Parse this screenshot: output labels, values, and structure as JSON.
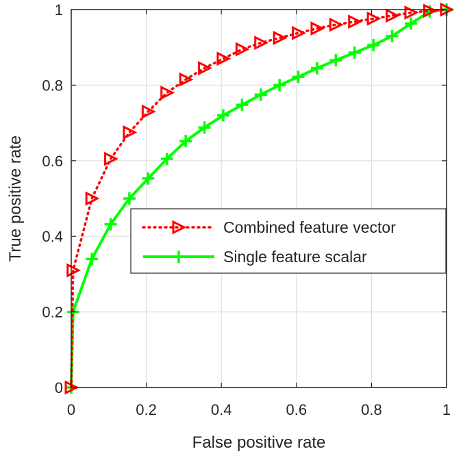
{
  "chart_data": {
    "type": "line",
    "title": "",
    "xlabel": "False positive rate",
    "ylabel": "True positive rate",
    "xlim": [
      0,
      1
    ],
    "ylim": [
      0,
      1
    ],
    "xticks": [
      0,
      0.2,
      0.4,
      0.6,
      0.8,
      1
    ],
    "yticks": [
      0,
      0.2,
      0.4,
      0.6,
      0.8,
      1
    ],
    "xtick_labels": [
      "0",
      "0.2",
      "0.4",
      "0.6",
      "0.8",
      "1"
    ],
    "ytick_labels": [
      "0",
      "0.2",
      "0.4",
      "0.6",
      "0.8",
      "1"
    ],
    "grid": true,
    "legend_position": "center-right",
    "series": [
      {
        "name": "Combined feature vector",
        "color": "#ff0000",
        "line_style": "dotted",
        "marker": "triangle-right",
        "points": [
          [
            0,
            0
          ],
          [
            0.005,
            0.31
          ],
          [
            0.055,
            0.5
          ],
          [
            0.105,
            0.605
          ],
          [
            0.155,
            0.675
          ],
          [
            0.205,
            0.73
          ],
          [
            0.255,
            0.78
          ],
          [
            0.305,
            0.815
          ],
          [
            0.355,
            0.845
          ],
          [
            0.405,
            0.87
          ],
          [
            0.455,
            0.895
          ],
          [
            0.505,
            0.912
          ],
          [
            0.555,
            0.925
          ],
          [
            0.605,
            0.938
          ],
          [
            0.655,
            0.95
          ],
          [
            0.705,
            0.96
          ],
          [
            0.755,
            0.968
          ],
          [
            0.805,
            0.976
          ],
          [
            0.855,
            0.984
          ],
          [
            0.905,
            0.992
          ],
          [
            0.955,
            0.997
          ],
          [
            1,
            1
          ]
        ]
      },
      {
        "name": "Single feature scalar",
        "color": "#00ff00",
        "line_style": "solid",
        "marker": "plus",
        "points": [
          [
            0,
            0
          ],
          [
            0.005,
            0.2
          ],
          [
            0.055,
            0.34
          ],
          [
            0.105,
            0.432
          ],
          [
            0.155,
            0.5
          ],
          [
            0.205,
            0.553
          ],
          [
            0.255,
            0.605
          ],
          [
            0.305,
            0.652
          ],
          [
            0.355,
            0.688
          ],
          [
            0.405,
            0.72
          ],
          [
            0.455,
            0.748
          ],
          [
            0.505,
            0.775
          ],
          [
            0.555,
            0.8
          ],
          [
            0.605,
            0.822
          ],
          [
            0.655,
            0.845
          ],
          [
            0.705,
            0.866
          ],
          [
            0.755,
            0.886
          ],
          [
            0.805,
            0.906
          ],
          [
            0.855,
            0.93
          ],
          [
            0.905,
            0.963
          ],
          [
            0.955,
            0.995
          ],
          [
            1,
            1
          ]
        ]
      }
    ]
  }
}
